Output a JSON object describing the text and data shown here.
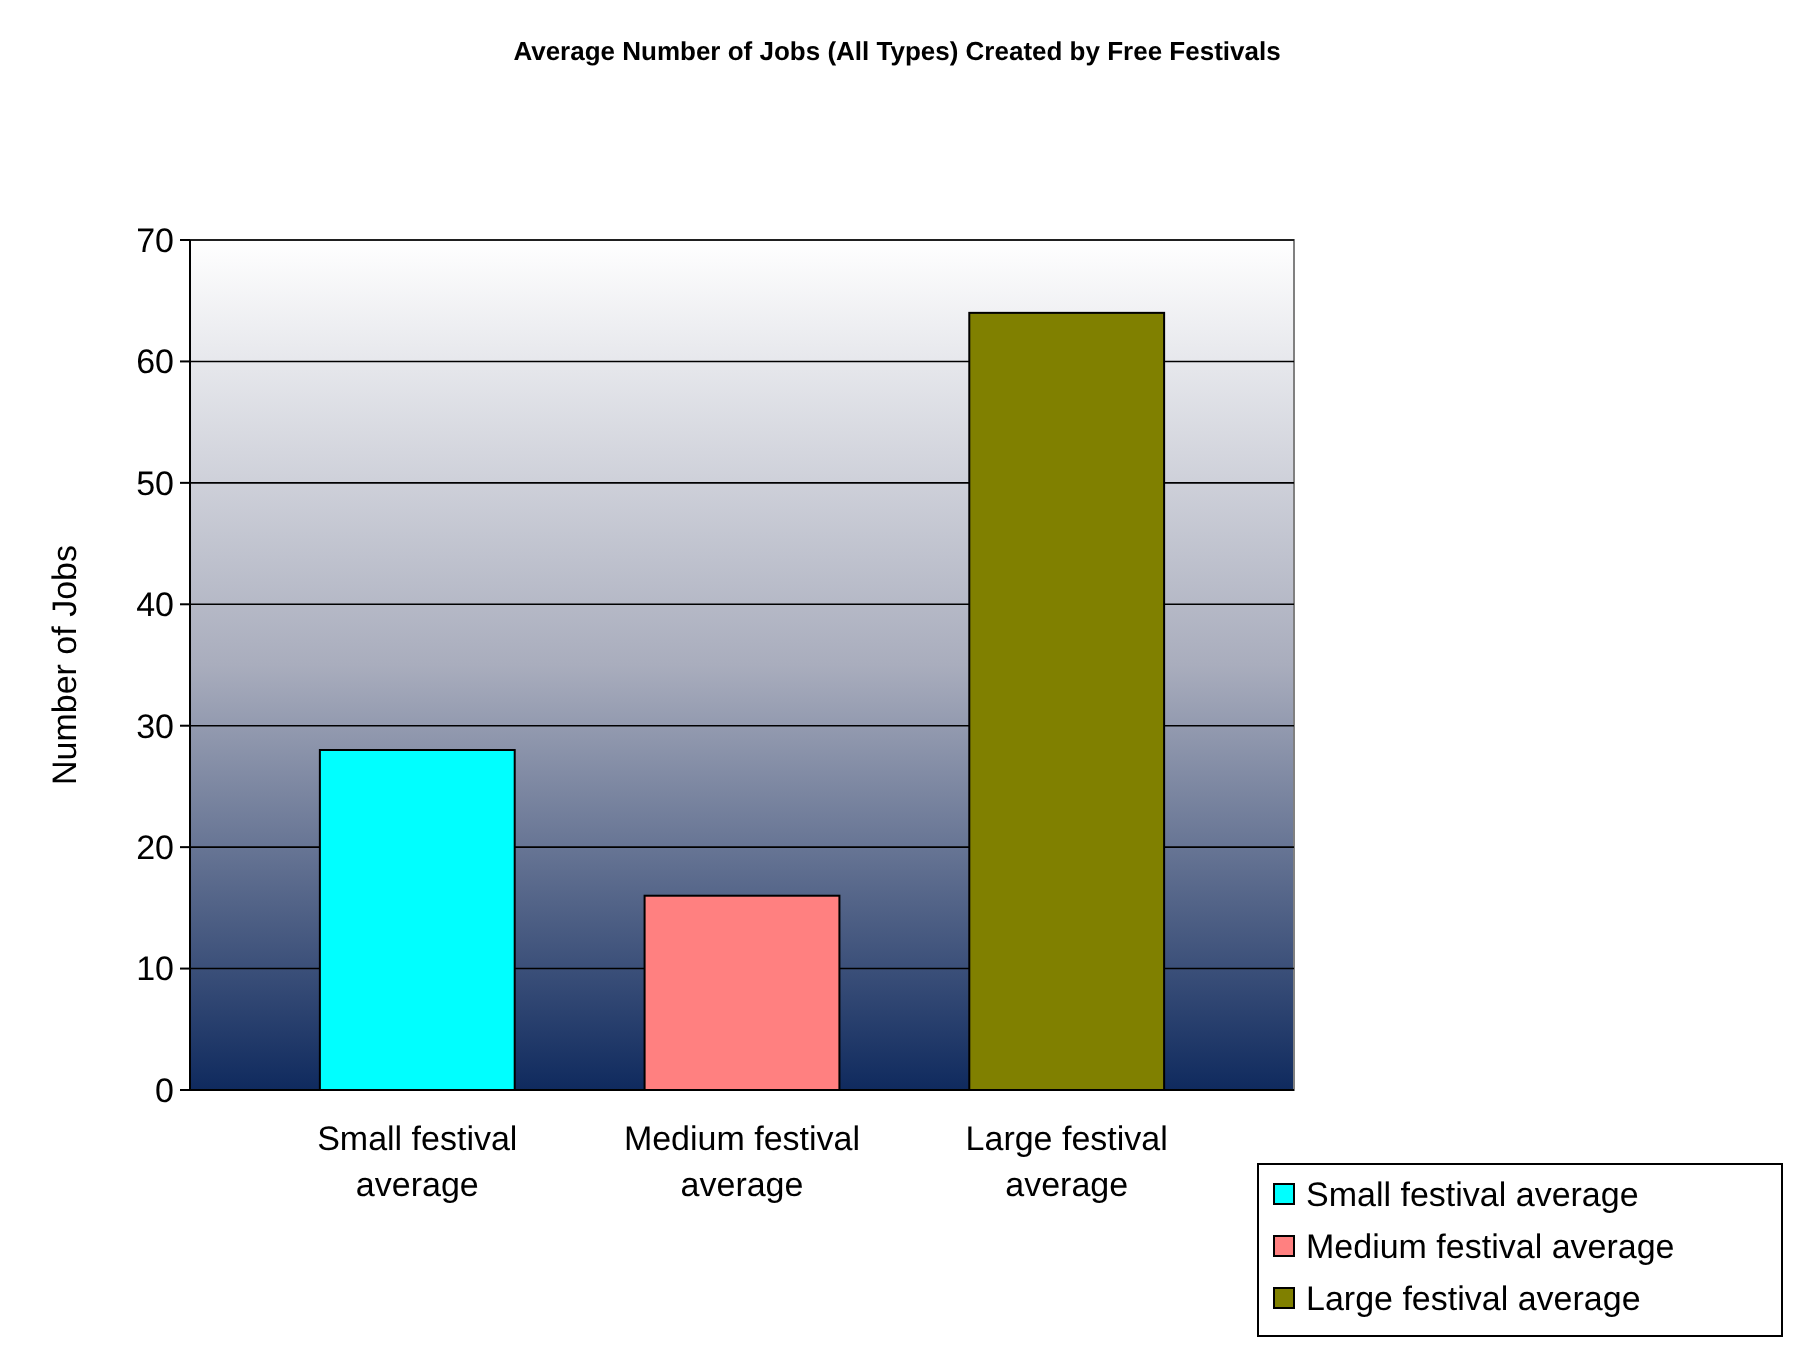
{
  "chart_data": {
    "type": "bar",
    "title": "Average Number of Jobs (All Types) Created by Free Festivals",
    "ylabel": "Number of Jobs",
    "categories": [
      "Small festival average",
      "Medium festival average",
      "Large festival average"
    ],
    "series": [
      {
        "name": "Small festival average",
        "color": "#00ffff",
        "values": [
          28,
          null,
          null
        ]
      },
      {
        "name": "Medium festival average",
        "color": "#ff8080",
        "values": [
          null,
          16,
          null
        ]
      },
      {
        "name": "Large festival average",
        "color": "#808000",
        "values": [
          null,
          null,
          64
        ]
      }
    ],
    "ylim": [
      0,
      70
    ],
    "yticks": [
      0,
      10,
      20,
      30,
      40,
      50,
      60,
      70
    ],
    "grid": "y",
    "legend": "bottom right"
  }
}
